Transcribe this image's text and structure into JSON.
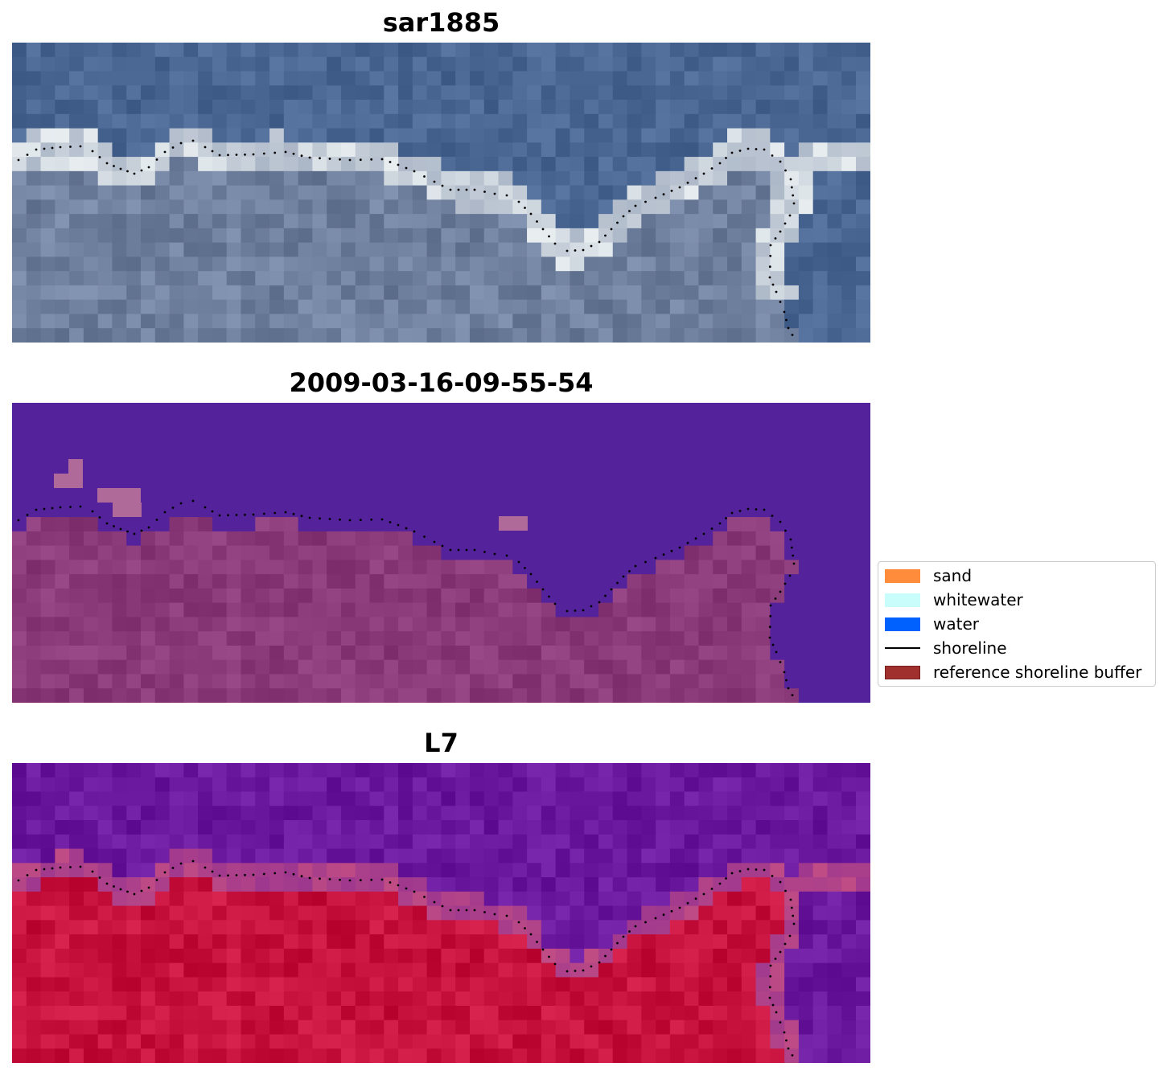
{
  "panels": [
    {
      "title": "sar1885"
    },
    {
      "title": "2009-03-16-09-55-54"
    },
    {
      "title": "L7"
    }
  ],
  "legend": {
    "items": [
      {
        "label": "sand",
        "color": "#ff8c3a",
        "kind": "patch"
      },
      {
        "label": "whitewater",
        "color": "#c8fdfb",
        "kind": "patch"
      },
      {
        "label": "water",
        "color": "#0061ff",
        "kind": "patch"
      },
      {
        "label": "shoreline",
        "color": "#000000",
        "kind": "line"
      },
      {
        "label": "reference shoreline buffer",
        "color": "#a0302e",
        "kind": "patch",
        "edge": "#7a1f1f"
      }
    ]
  },
  "colors": {
    "rgb_water": "#4a6794",
    "rgb_land": "#6f7f9e",
    "rgb_bright": "#e8eef0",
    "class_water": "#54229a",
    "class_land": "#8a3a78",
    "class_patch": "#b06a9a",
    "mndwi_water": "#6a189e",
    "mndwi_land": "#c8123e",
    "mndwi_edge": "#c04c84",
    "shoreline_dot": "#000000"
  }
}
